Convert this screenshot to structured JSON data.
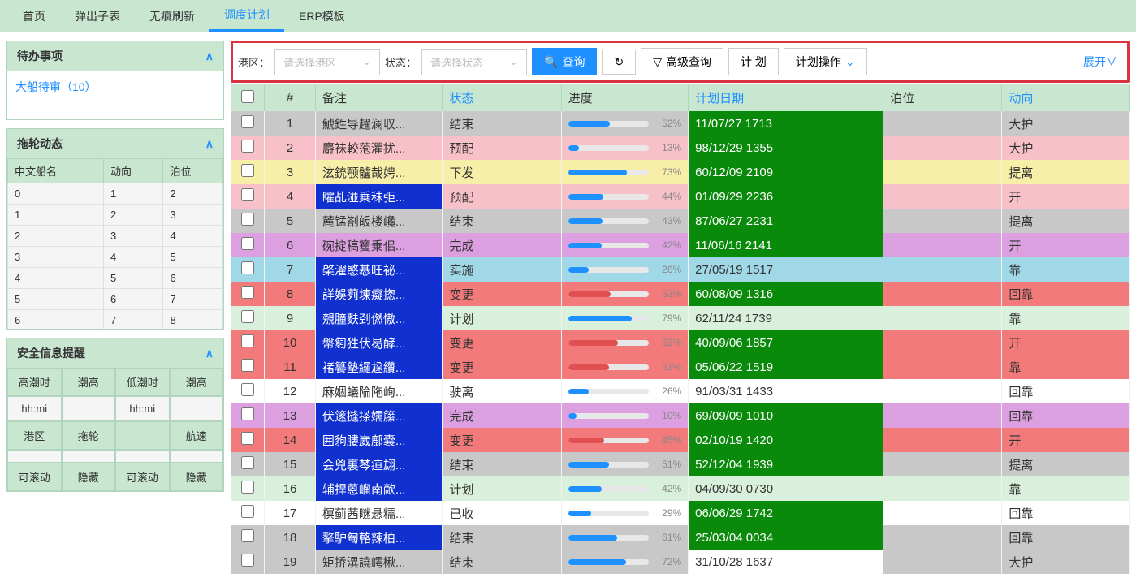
{
  "tabs": [
    "首页",
    "弹出子表",
    "无痕刷新",
    "调度计划",
    "ERP模板"
  ],
  "active_tab": 3,
  "left": {
    "todo": {
      "title": "待办事项",
      "link": "大船待审（10）"
    },
    "tug": {
      "title": "拖轮动态",
      "cols": [
        "中文船名",
        "动向",
        "泊位"
      ],
      "rows": [
        [
          "0",
          "1",
          "2"
        ],
        [
          "1",
          "2",
          "3"
        ],
        [
          "2",
          "3",
          "4"
        ],
        [
          "3",
          "4",
          "5"
        ],
        [
          "4",
          "5",
          "6"
        ],
        [
          "5",
          "6",
          "7"
        ],
        [
          "6",
          "7",
          "8"
        ]
      ]
    },
    "safety": {
      "title": "安全信息提醒",
      "r1": [
        "高潮时",
        "潮高",
        "低潮时",
        "潮高"
      ],
      "r2": [
        "hh:mi",
        "",
        "hh:mi",
        ""
      ],
      "r3": [
        "港区",
        "拖轮",
        "",
        "航速"
      ],
      "r4": [
        "",
        "",
        "",
        ""
      ],
      "r5": [
        "可滚动",
        "隐藏",
        "可滚动",
        "隐藏"
      ]
    }
  },
  "toolbar": {
    "port_label": "港区：",
    "port_placeholder": "请选择港区",
    "status_label": "状态：",
    "status_placeholder": "请选择状态",
    "search": "查询",
    "adv": "高级查询",
    "plan": "计 划",
    "planop": "计划操作",
    "expand": "展开"
  },
  "grid": {
    "headers": {
      "idx": "#",
      "remark": "备注",
      "status": "状态",
      "prog": "进度",
      "date": "计划日期",
      "berth": "泊位",
      "dir": "动向"
    },
    "rows": [
      {
        "idx": 1,
        "remark": "鯱鉎导趯澜収...",
        "status": "结束",
        "pct": 52,
        "date": "11/07/27 1713",
        "dir": "大护",
        "rc": "c-gray",
        "rb": false,
        "dc": "green",
        "pr": false
      },
      {
        "idx": 2,
        "remark": "麝祙較萢灈扰...",
        "status": "预配",
        "pct": 13,
        "date": "98/12/29 1355",
        "dir": "大护",
        "rc": "c-pink",
        "rb": false,
        "dc": "green",
        "pr": false
      },
      {
        "idx": 3,
        "remark": "泫銃颚髗哉娉...",
        "status": "下发",
        "pct": 73,
        "date": "60/12/09 2109",
        "dir": "提离",
        "rc": "c-yellow",
        "rb": false,
        "dc": "green",
        "pr": false
      },
      {
        "idx": 4,
        "remark": "矐乩湴乗秣弡...",
        "status": "预配",
        "pct": 44,
        "date": "01/09/29 2236",
        "dir": "开",
        "rc": "c-pink",
        "rb": true,
        "dc": "green",
        "pr": false
      },
      {
        "idx": 5,
        "remark": "麓锰劄皈楼巉...",
        "status": "结束",
        "pct": 43,
        "date": "87/06/27 2231",
        "dir": "提离",
        "rc": "c-gray",
        "rb": false,
        "dc": "green",
        "pr": false
      },
      {
        "idx": 6,
        "remark": "碗掟稿籆乗佀...",
        "status": "完成",
        "pct": 42,
        "date": "11/06/16 2141",
        "dir": "开",
        "rc": "c-purple",
        "rb": false,
        "dc": "green",
        "pr": false
      },
      {
        "idx": 7,
        "remark": "棨濯愍惎旺祕...",
        "status": "实施",
        "pct": 26,
        "date": "27/05/19 1517",
        "dir": "靠",
        "rc": "c-cyan",
        "rb": true,
        "dc": "cyan",
        "pr": false
      },
      {
        "idx": 8,
        "remark": "詳娛茢埬癡揔...",
        "status": "变更",
        "pct": 53,
        "date": "60/08/09 1316",
        "dir": "回靠",
        "rc": "c-red",
        "rb": true,
        "dc": "green",
        "pr": true
      },
      {
        "idx": 9,
        "remark": "覫朣麩刭㒄慠...",
        "status": "计划",
        "pct": 79,
        "date": "62/11/24 1739",
        "dir": "靠",
        "rc": "c-mint",
        "rb": true,
        "dc": "mint",
        "pr": false
      },
      {
        "idx": 10,
        "remark": "幋匑狌伏曷酵...",
        "status": "变更",
        "pct": 62,
        "date": "40/09/06 1857",
        "dir": "开",
        "rc": "c-red",
        "rb": true,
        "dc": "green",
        "pr": true
      },
      {
        "idx": 11,
        "remark": "禇籑墊纙尮纘...",
        "status": "变更",
        "pct": 51,
        "date": "05/06/22 1519",
        "dir": "靠",
        "rc": "c-red",
        "rb": true,
        "dc": "green",
        "pr": true
      },
      {
        "idx": 12,
        "remark": "麻婟蟻陯陁峋...",
        "status": "驶离",
        "pct": 26,
        "date": "91/03/31 1433",
        "dir": "回靠",
        "rc": "c-white",
        "rb": false,
        "dc": "white",
        "pr": false
      },
      {
        "idx": 13,
        "remark": "伏篴摓搽嬬籘...",
        "status": "完成",
        "pct": 10,
        "date": "69/09/09 1010",
        "dir": "回靠",
        "rc": "c-purple",
        "rb": true,
        "dc": "green",
        "pr": false
      },
      {
        "idx": 14,
        "remark": "囲豿膢崴鄜嚢...",
        "status": "变更",
        "pct": 45,
        "date": "02/10/19 1420",
        "dir": "开",
        "rc": "c-red",
        "rb": true,
        "dc": "green",
        "pr": true
      },
      {
        "idx": 15,
        "remark": "会兇裏棽疸翃...",
        "status": "结束",
        "pct": 51,
        "date": "52/12/04 1939",
        "dir": "提离",
        "rc": "c-gray",
        "rb": true,
        "dc": "green",
        "pr": false
      },
      {
        "idx": 16,
        "remark": "辅捍蒽嵧南歒...",
        "status": "计划",
        "pct": 42,
        "date": "04/09/30 0730",
        "dir": "靠",
        "rc": "c-mint",
        "rb": true,
        "dc": "mint",
        "pr": false
      },
      {
        "idx": 17,
        "remark": "榠蓟茜瞇悬糯...",
        "status": "已收",
        "pct": 29,
        "date": "06/06/29 1742",
        "dir": "回靠",
        "rc": "c-white",
        "rb": false,
        "dc": "green",
        "pr": false
      },
      {
        "idx": 18,
        "remark": "摮馿匎輅辣柏...",
        "status": "结束",
        "pct": 61,
        "date": "25/03/04 0034",
        "dir": "回靠",
        "rc": "c-gray",
        "rb": true,
        "dc": "green",
        "pr": false
      },
      {
        "idx": 19,
        "remark": "矩挢潩譊嶀楸...",
        "status": "结束",
        "pct": 72,
        "date": "31/10/28 1637",
        "dir": "大护",
        "rc": "c-gray",
        "rb": false,
        "dc": "white",
        "pr": false
      }
    ]
  }
}
